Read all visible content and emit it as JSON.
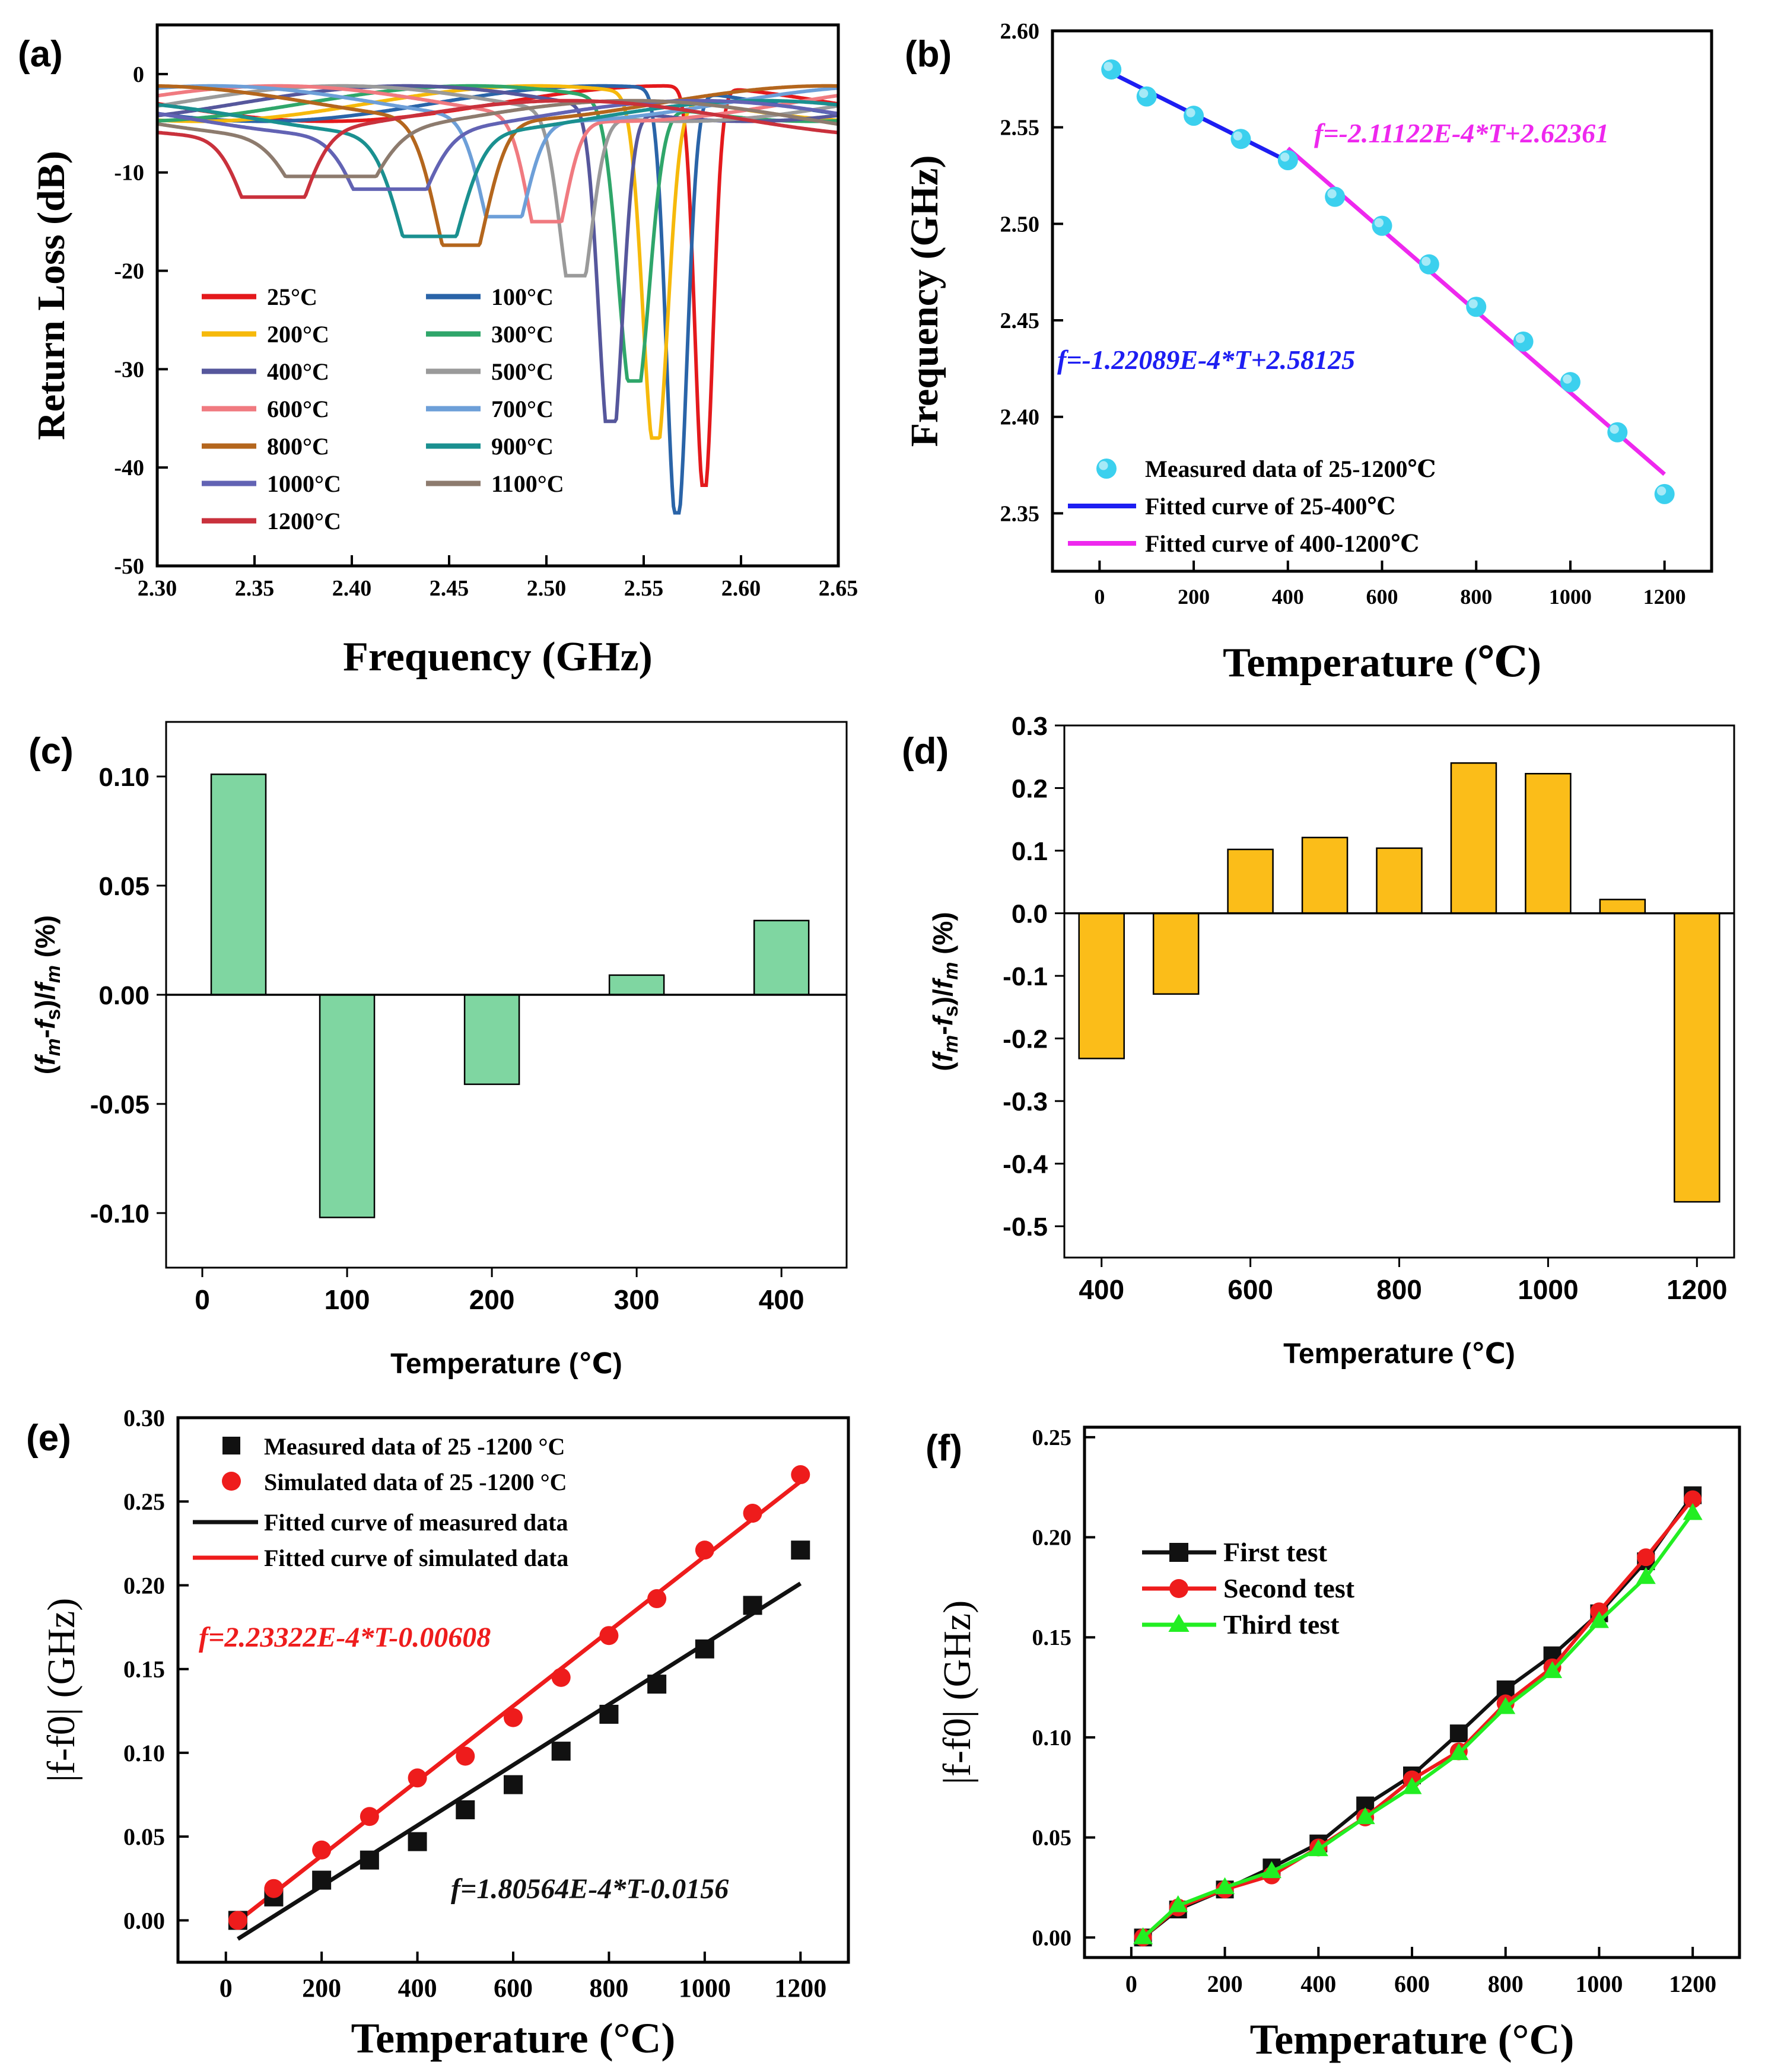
{
  "chart_data": [
    {
      "id": "a",
      "panel_label": "(a)",
      "type": "line",
      "xlabel": "Frequency (GHz)",
      "ylabel": "Return Loss (dB)",
      "xlim": [
        2.3,
        2.65
      ],
      "ylim": [
        -50,
        5
      ],
      "x_ticks": [
        "2.30",
        "2.35",
        "2.40",
        "2.45",
        "2.50",
        "2.55",
        "2.60",
        "2.65"
      ],
      "y_ticks": [
        "0",
        "-10",
        "-20",
        "-30",
        "-40",
        "-50"
      ],
      "series": [
        {
          "name": "25°C",
          "color": "#e4191c",
          "center": 2.581,
          "depth": -41.8,
          "width": 0.0065
        },
        {
          "name": "100°C",
          "color": "#2a64a8",
          "center": 2.567,
          "depth": -44.6,
          "width": 0.0075
        },
        {
          "name": "200°C",
          "color": "#f6b90b",
          "center": 2.556,
          "depth": -37.0,
          "width": 0.009
        },
        {
          "name": "300°C",
          "color": "#2fa66a",
          "center": 2.545,
          "depth": -31.2,
          "width": 0.011
        },
        {
          "name": "400°C",
          "color": "#56579c",
          "center": 2.533,
          "depth": -35.3,
          "width": 0.0085
        },
        {
          "name": "500°C",
          "color": "#9a9a9a",
          "center": 2.515,
          "depth": -20.5,
          "width": 0.011
        },
        {
          "name": "600°C",
          "color": "#f07a80",
          "center": 2.5,
          "depth": -15.0,
          "width": 0.013
        },
        {
          "name": "700°C",
          "color": "#6d9fd8",
          "center": 2.478,
          "depth": -14.5,
          "width": 0.015
        },
        {
          "name": "800°C",
          "color": "#b4661d",
          "center": 2.456,
          "depth": -17.4,
          "width": 0.017
        },
        {
          "name": "900°C",
          "color": "#1a9090",
          "center": 2.44,
          "depth": -16.5,
          "width": 0.02
        },
        {
          "name": "1000°C",
          "color": "#6263b4",
          "center": 2.42,
          "depth": -11.7,
          "width": 0.022
        },
        {
          "name": "1100°C",
          "color": "#8d7b6e",
          "center": 2.39,
          "depth": -10.4,
          "width": 0.025
        },
        {
          "name": "1200°C",
          "color": "#c9313c",
          "center": 2.36,
          "depth": -12.5,
          "width": 0.02
        }
      ]
    },
    {
      "id": "b",
      "panel_label": "(b)",
      "type": "scatter",
      "xlabel": "Temperature (℃)",
      "ylabel": "Frequency (GHz)",
      "xlim": [
        -100,
        1300
      ],
      "ylim": [
        2.32,
        2.6
      ],
      "x_ticks": [
        "0",
        "200",
        "400",
        "600",
        "800",
        "1000",
        "1200"
      ],
      "y_ticks": [
        "2.35",
        "2.40",
        "2.45",
        "2.50",
        "2.55",
        "2.60"
      ],
      "x": [
        25,
        100,
        200,
        300,
        400,
        500,
        600,
        700,
        800,
        900,
        1000,
        1100,
        1200
      ],
      "y": [
        2.58,
        2.566,
        2.556,
        2.544,
        2.533,
        2.514,
        2.499,
        2.479,
        2.457,
        2.439,
        2.418,
        2.392,
        2.36
      ],
      "fits": [
        {
          "name": "Fitted curve of 25-400℃",
          "slope": -0.000122089,
          "intercept": 2.58125,
          "x_range": [
            25,
            400
          ],
          "color": "#1d1ef2",
          "equation": "f=-1.22089E-4*T+2.58125",
          "eq_color": "#1d1ef2"
        },
        {
          "name": "Fitted curve of 400-1200℃",
          "slope": -0.000211122,
          "intercept": 2.62361,
          "x_range": [
            400,
            1200
          ],
          "color": "#ee28ee",
          "equation": "f=-2.11122E-4*T+2.62361",
          "eq_color": "#ee28ee"
        }
      ],
      "legend": [
        "Measured data of 25-1200℃",
        "Fitted curve of 25-400℃",
        "Fitted curve of 400-1200℃"
      ],
      "marker_color": "#3bd0ee"
    },
    {
      "id": "c",
      "panel_label": "(c)",
      "type": "bar",
      "xlabel": "Temperature (℃)",
      "ylabel": "(fm-fs)/fm (%)",
      "xlim": [
        -25,
        445
      ],
      "ylim": [
        -0.125,
        0.125
      ],
      "x_ticks": [
        "0",
        "100",
        "200",
        "300",
        "400"
      ],
      "y_ticks": [
        "0.10",
        "0.05",
        "0.00",
        "-0.05",
        "-0.10"
      ],
      "categories": [
        25,
        100,
        200,
        300,
        400
      ],
      "values": [
        0.101,
        -0.102,
        -0.041,
        0.009,
        0.034
      ],
      "bar_color": "#7fd6a1"
    },
    {
      "id": "d",
      "panel_label": "(d)",
      "type": "bar",
      "xlabel": "Temperature (℃)",
      "ylabel": "(fm-fs)/fm (%)",
      "xlim": [
        350,
        1250
      ],
      "ylim": [
        -0.55,
        0.3
      ],
      "x_ticks": [
        "400",
        "600",
        "800",
        "1000",
        "1200"
      ],
      "y_ticks": [
        "0.3",
        "0.2",
        "0.1",
        "0.0",
        "-0.1",
        "-0.2",
        "-0.3",
        "-0.4",
        "-0.5"
      ],
      "categories": [
        400,
        500,
        600,
        700,
        800,
        900,
        1000,
        1100,
        1200
      ],
      "values": [
        -0.232,
        -0.129,
        0.102,
        0.121,
        0.104,
        0.24,
        0.223,
        0.022,
        -0.461
      ],
      "bar_color": "#fbbd19"
    },
    {
      "id": "e",
      "panel_label": "(e)",
      "type": "scatter",
      "xlabel": "Temperature (°C)",
      "ylabel": "|f-f0| (GHz)",
      "xlim": [
        -100,
        1300
      ],
      "ylim": [
        -0.025,
        0.3
      ],
      "x_ticks": [
        "0",
        "200",
        "400",
        "600",
        "800",
        "1000",
        "1200"
      ],
      "y_ticks": [
        "0.00",
        "0.05",
        "0.10",
        "0.15",
        "0.20",
        "0.25",
        "0.30"
      ],
      "series": [
        {
          "name": "Measured data of 25 -1200 °C",
          "marker": "square",
          "color": "#111111",
          "x": [
            25,
            100,
            200,
            300,
            400,
            500,
            600,
            700,
            800,
            900,
            1000,
            1100,
            1200
          ],
          "y": [
            0.0,
            0.014,
            0.024,
            0.036,
            0.047,
            0.066,
            0.081,
            0.101,
            0.123,
            0.141,
            0.162,
            0.188,
            0.221
          ]
        },
        {
          "name": "Simulated data of 25 -1200 °C",
          "marker": "circle",
          "color": "#ee1c1c",
          "x": [
            25,
            100,
            200,
            300,
            400,
            500,
            600,
            700,
            800,
            900,
            1000,
            1100,
            1200
          ],
          "y": [
            0.0,
            0.019,
            0.042,
            0.062,
            0.085,
            0.098,
            0.121,
            0.145,
            0.17,
            0.192,
            0.221,
            0.243,
            0.266
          ]
        }
      ],
      "fits": [
        {
          "name": "Fitted curve of measured data",
          "slope": 0.000180564,
          "intercept": -0.0156,
          "x_range": [
            25,
            1200
          ],
          "color": "#111111",
          "equation": "f=1.80564E-4*T-0.0156",
          "eq_color": "#111111"
        },
        {
          "name": "Fitted curve of simulated data",
          "slope": 0.000223322,
          "intercept": -0.00608,
          "x_range": [
            25,
            1200
          ],
          "color": "#ee1c1c",
          "equation": "f=2.23322E-4*T-0.00608",
          "eq_color": "#ee1c1c"
        }
      ],
      "legend": [
        "Measured data of 25 -1200 °C",
        "Simulated data of 25 -1200 °C",
        "Fitted curve of measured data",
        "Fitted curve of simulated data"
      ]
    },
    {
      "id": "f",
      "panel_label": "(f)",
      "type": "line",
      "xlabel": "Temperature (°C)",
      "ylabel": "|f-f0| (GHz)",
      "xlim": [
        -100,
        1300
      ],
      "ylim": [
        -0.01,
        0.255
      ],
      "x_ticks": [
        "0",
        "200",
        "400",
        "600",
        "800",
        "1000",
        "1200"
      ],
      "y_ticks": [
        "0.00",
        "0.05",
        "0.10",
        "0.15",
        "0.20",
        "0.25"
      ],
      "x": [
        25,
        100,
        200,
        300,
        400,
        500,
        600,
        700,
        800,
        900,
        1000,
        1100,
        1200
      ],
      "series": [
        {
          "name": "First test",
          "marker": "square",
          "color": "#111111",
          "values": [
            0.0,
            0.014,
            0.024,
            0.035,
            0.047,
            0.066,
            0.081,
            0.102,
            0.124,
            0.141,
            0.162,
            0.188,
            0.221
          ]
        },
        {
          "name": "Second test",
          "marker": "circle",
          "color": "#ee1c1c",
          "values": [
            0.0,
            0.015,
            0.024,
            0.031,
            0.045,
            0.06,
            0.079,
            0.093,
            0.117,
            0.135,
            0.163,
            0.19,
            0.219
          ]
        },
        {
          "name": "Third test",
          "marker": "triangle",
          "color": "#22ee22",
          "values": [
            0.0,
            0.016,
            0.025,
            0.033,
            0.044,
            0.06,
            0.075,
            0.092,
            0.115,
            0.133,
            0.158,
            0.18,
            0.212
          ]
        }
      ]
    }
  ]
}
